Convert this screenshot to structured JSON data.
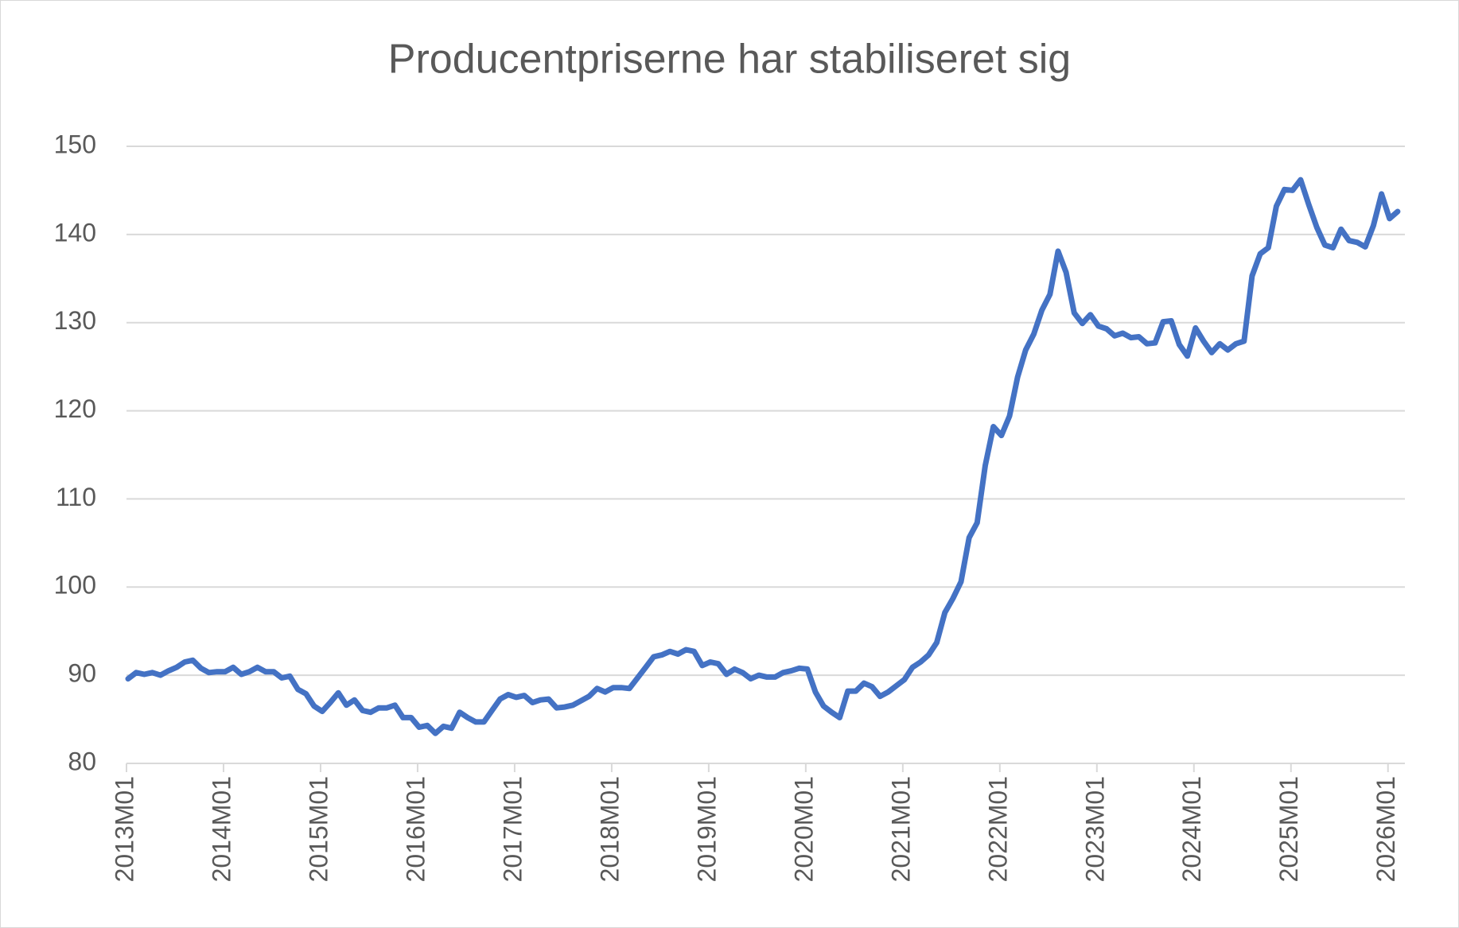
{
  "chart_data": {
    "type": "line",
    "title": "Producentpriserne har stabiliseret sig",
    "categories": [
      "2013M01",
      null,
      null,
      null,
      null,
      null,
      null,
      null,
      null,
      null,
      null,
      null,
      "2014M01",
      null,
      null,
      null,
      null,
      null,
      null,
      null,
      null,
      null,
      null,
      null,
      "2015M01",
      null,
      null,
      null,
      null,
      null,
      null,
      null,
      null,
      null,
      null,
      null,
      "2016M01",
      null,
      null,
      null,
      null,
      null,
      null,
      null,
      null,
      null,
      null,
      null,
      "2017M01",
      null,
      null,
      null,
      null,
      null,
      null,
      null,
      null,
      null,
      null,
      null,
      "2018M01",
      null,
      null,
      null,
      null,
      null,
      null,
      null,
      null,
      null,
      null,
      null,
      "2019M01",
      null,
      null,
      null,
      null,
      null,
      null,
      null,
      null,
      null,
      null,
      null,
      "2020M01",
      null,
      null,
      null,
      null,
      null,
      null,
      null,
      null,
      null,
      null,
      null,
      "2021M01",
      null,
      null,
      null,
      null,
      null,
      null,
      null,
      null,
      null,
      null,
      null,
      "2022M01",
      null,
      null,
      null,
      null,
      null,
      null,
      null,
      null,
      null,
      null,
      null,
      "2023M01",
      null,
      null,
      null,
      null,
      null,
      null,
      null,
      null,
      null,
      null,
      null,
      "2024M01",
      null,
      null,
      null,
      null,
      null,
      null,
      null,
      null,
      null,
      null,
      null,
      "2025M01",
      null,
      null,
      null,
      null,
      null,
      null,
      null,
      null,
      null,
      null,
      null,
      "2026M01",
      null
    ],
    "values": [
      89.6,
      90.3,
      90.1,
      90.3,
      90.0,
      90.5,
      90.9,
      91.5,
      91.7,
      90.8,
      90.3,
      90.4,
      90.4,
      90.9,
      90.1,
      90.4,
      90.9,
      90.4,
      90.4,
      89.7,
      89.9,
      88.4,
      87.9,
      86.5,
      85.9,
      86.9,
      88.0,
      86.6,
      87.2,
      86.0,
      85.8,
      86.3,
      86.3,
      86.6,
      85.2,
      85.2,
      84.1,
      84.3,
      83.4,
      84.2,
      84.0,
      85.8,
      85.2,
      84.7,
      84.7,
      86.0,
      87.3,
      87.8,
      87.5,
      87.7,
      86.9,
      87.2,
      87.3,
      86.3,
      86.4,
      86.6,
      87.1,
      87.6,
      88.5,
      88.1,
      88.6,
      88.6,
      88.5,
      89.7,
      90.9,
      92.1,
      92.3,
      92.7,
      92.4,
      92.9,
      92.7,
      91.1,
      91.5,
      91.3,
      90.1,
      90.7,
      90.3,
      89.6,
      90.0,
      89.8,
      89.8,
      90.3,
      90.5,
      90.8,
      90.7,
      88.1,
      86.5,
      85.8,
      85.2,
      88.2,
      88.2,
      89.1,
      88.7,
      87.6,
      88.1,
      88.8,
      89.5,
      90.9,
      91.5,
      92.3,
      93.7,
      97.1,
      98.7,
      100.6,
      105.6,
      107.3,
      113.8,
      118.2,
      117.2,
      119.4,
      123.8,
      126.9,
      128.7,
      131.4,
      133.2,
      138.1,
      135.7,
      131.1,
      129.9,
      130.9,
      129.6,
      129.3,
      128.5,
      128.8,
      128.3,
      128.4,
      127.6,
      127.7,
      130.1,
      130.2,
      127.5,
      126.2,
      129.4,
      127.9,
      126.6,
      127.6,
      126.9,
      127.6,
      127.9,
      135.3,
      137.8,
      138.5,
      143.2,
      145.1,
      145.0,
      146.2,
      143.4,
      140.8,
      138.8,
      138.5,
      140.6,
      139.3,
      139.1,
      138.6,
      141.0,
      144.6,
      141.8,
      142.6
    ],
    "color": "#4472c4",
    "ylim": [
      80,
      150
    ],
    "yticks": [
      80,
      90,
      100,
      110,
      120,
      130,
      140,
      150
    ],
    "grid": true
  }
}
